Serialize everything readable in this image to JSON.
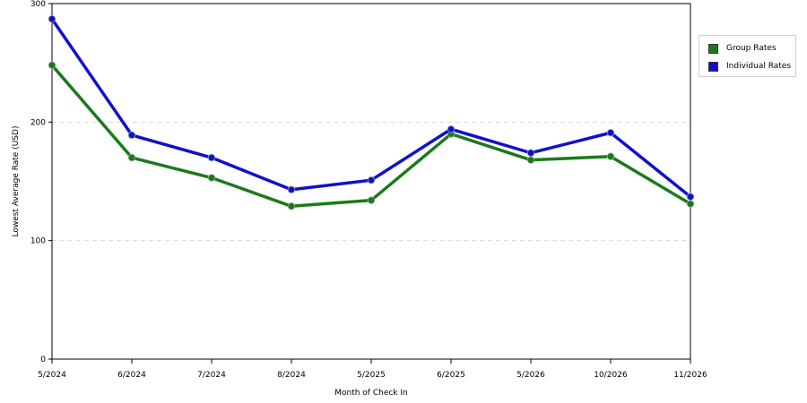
{
  "chart_data": {
    "type": "line",
    "categories": [
      "5/2024",
      "6/2024",
      "7/2024",
      "8/2024",
      "5/2025",
      "6/2025",
      "5/2026",
      "10/2026",
      "11/2026"
    ],
    "series": [
      {
        "name": "Group Rates",
        "color": "#1a7a1a",
        "values": [
          248,
          170,
          153,
          129,
          134,
          190,
          168,
          171,
          131
        ]
      },
      {
        "name": "Individual Rates",
        "color": "#1010cc",
        "values": [
          287,
          189,
          170,
          143,
          151,
          194,
          174,
          191,
          137
        ]
      }
    ],
    "xlabel": "Month of Check In",
    "ylabel": "Lowest Average Rate (USD)",
    "ylim": [
      0,
      300
    ],
    "yticks": [
      0,
      100,
      200,
      300
    ],
    "grid": true,
    "legend_position": "right"
  }
}
